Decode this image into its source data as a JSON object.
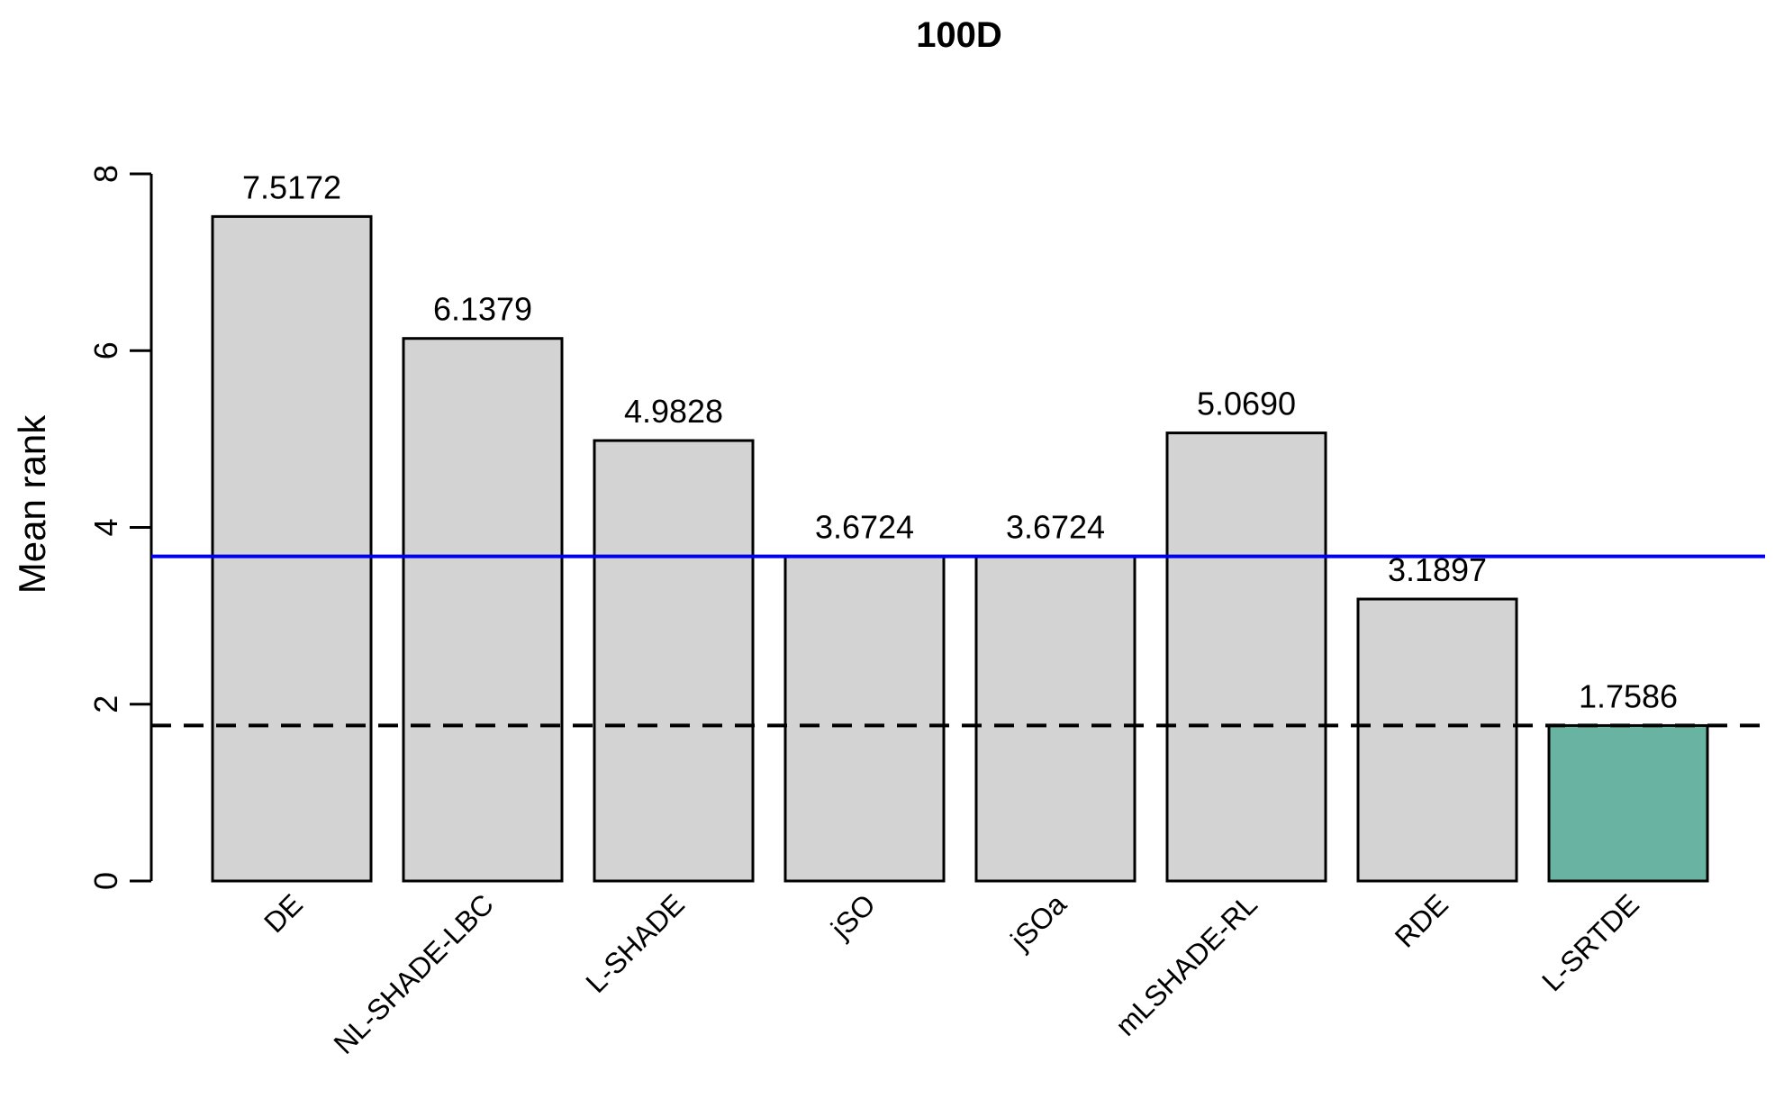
{
  "chart_data": {
    "type": "bar",
    "title": "100D",
    "xlabel": "",
    "ylabel": "Mean rank",
    "ylim": [
      0,
      8
    ],
    "yticks": [
      0,
      2,
      4,
      6,
      8
    ],
    "categories": [
      "DE",
      "NL-SHADE-LBC",
      "L-SHADE",
      "jSO",
      "jSOa",
      "mLSHADE-RL",
      "RDE",
      "L-SRTDE"
    ],
    "values": [
      7.5172,
      6.1379,
      4.9828,
      3.6724,
      3.6724,
      5.069,
      3.1897,
      1.7586
    ],
    "value_labels": [
      "7.5172",
      "6.1379",
      "4.9828",
      "3.6724",
      "3.6724",
      "5.0690",
      "3.1897",
      "1.7586"
    ],
    "bar_color": "#d3d3d3",
    "highlight_color": "#69b3a2",
    "highlight_index": 7,
    "reference_lines": [
      {
        "value": 3.6724,
        "color": "#0000ee",
        "style": "solid"
      },
      {
        "value": 1.7586,
        "color": "#000000",
        "style": "dashed"
      }
    ],
    "grid": false
  }
}
